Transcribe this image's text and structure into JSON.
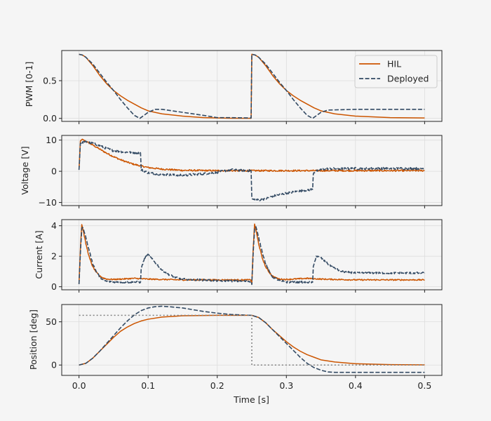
{
  "colors": {
    "hil": "#cc5500",
    "deployed": "#334a63",
    "reference": "#808080",
    "grid": "#dddddd",
    "background": "#f5f5f5"
  },
  "chart_data": [
    {
      "type": "line",
      "ylabel": "PWM [0-1]",
      "xlim": [
        -0.025,
        0.525
      ],
      "ylim": [
        -0.04,
        0.9
      ],
      "yticks": [
        0.0,
        0.5
      ],
      "ytick_labels": [
        "0.0",
        "0.5"
      ],
      "legend": {
        "position": "top-right",
        "entries": [
          "HIL",
          "Deployed"
        ]
      },
      "series": [
        {
          "name": "HIL",
          "style": "solid",
          "x": [
            0,
            0.005,
            0.01,
            0.02,
            0.03,
            0.04,
            0.05,
            0.06,
            0.07,
            0.08,
            0.09,
            0.1,
            0.12,
            0.15,
            0.18,
            0.2,
            0.22,
            0.249,
            0.25,
            0.255,
            0.26,
            0.27,
            0.28,
            0.29,
            0.3,
            0.31,
            0.32,
            0.33,
            0.34,
            0.35,
            0.37,
            0.4,
            0.45,
            0.5
          ],
          "y": [
            0.85,
            0.84,
            0.81,
            0.7,
            0.57,
            0.46,
            0.37,
            0.3,
            0.24,
            0.19,
            0.14,
            0.1,
            0.06,
            0.03,
            0.01,
            0.005,
            0.002,
            0.001,
            0.85,
            0.84,
            0.81,
            0.7,
            0.57,
            0.46,
            0.37,
            0.3,
            0.24,
            0.19,
            0.14,
            0.1,
            0.06,
            0.03,
            0.01,
            0.005
          ]
        },
        {
          "name": "Deployed",
          "style": "dashed",
          "x": [
            0,
            0.005,
            0.01,
            0.02,
            0.03,
            0.04,
            0.05,
            0.06,
            0.07,
            0.08,
            0.088,
            0.1,
            0.11,
            0.12,
            0.15,
            0.18,
            0.2,
            0.22,
            0.249,
            0.25,
            0.255,
            0.26,
            0.27,
            0.28,
            0.29,
            0.3,
            0.31,
            0.32,
            0.33,
            0.338,
            0.35,
            0.36,
            0.4,
            0.45,
            0.5
          ],
          "y": [
            0.85,
            0.84,
            0.81,
            0.72,
            0.6,
            0.48,
            0.37,
            0.25,
            0.14,
            0.04,
            0.0,
            0.08,
            0.12,
            0.12,
            0.08,
            0.04,
            0.01,
            0.01,
            0.005,
            0.85,
            0.84,
            0.81,
            0.72,
            0.6,
            0.48,
            0.37,
            0.25,
            0.14,
            0.04,
            0.0,
            0.08,
            0.11,
            0.12,
            0.12,
            0.12
          ]
        }
      ]
    },
    {
      "type": "line",
      "ylabel": "Voltage [V]",
      "xlim": [
        -0.025,
        0.525
      ],
      "ylim": [
        -11,
        11.5
      ],
      "yticks": [
        -10,
        0,
        10
      ],
      "ytick_labels": [
        "−10",
        "0",
        "10"
      ],
      "series": [
        {
          "name": "HIL",
          "style": "solid",
          "noise": 0.25,
          "x": [
            0,
            0.002,
            0.004,
            0.01,
            0.02,
            0.03,
            0.04,
            0.05,
            0.06,
            0.07,
            0.08,
            0.09,
            0.1,
            0.12,
            0.15,
            0.2,
            0.25,
            0.3,
            0.35,
            0.4,
            0.45,
            0.5
          ],
          "y": [
            0.5,
            9.5,
            10.2,
            9.6,
            8.4,
            7.1,
            5.8,
            4.7,
            3.7,
            2.9,
            2.2,
            1.7,
            1.2,
            0.7,
            0.3,
            0.2,
            0.2,
            0.2,
            0.2,
            0.2,
            0.2,
            0.2
          ]
        },
        {
          "name": "Deployed",
          "style": "dashed",
          "noise": 0.35,
          "x": [
            0,
            0.002,
            0.004,
            0.01,
            0.02,
            0.03,
            0.04,
            0.05,
            0.06,
            0.07,
            0.08,
            0.089,
            0.09,
            0.1,
            0.12,
            0.15,
            0.18,
            0.2,
            0.22,
            0.23,
            0.245,
            0.249,
            0.25,
            0.251,
            0.26,
            0.27,
            0.28,
            0.3,
            0.32,
            0.338,
            0.339,
            0.345,
            0.35,
            0.36,
            0.4,
            0.45,
            0.5
          ],
          "y": [
            0.5,
            9.0,
            9.3,
            9.4,
            9.0,
            8.2,
            7.3,
            6.6,
            6.3,
            6.1,
            6.0,
            5.9,
            0.5,
            -0.5,
            -1.0,
            -1.3,
            -0.8,
            -0.3,
            0.5,
            0.3,
            0.2,
            0.2,
            -8.5,
            -9.0,
            -9.2,
            -8.8,
            -8.0,
            -7.0,
            -6.3,
            -5.8,
            -0.5,
            0.2,
            0.6,
            0.8,
            0.9,
            0.9,
            0.9
          ]
        }
      ]
    },
    {
      "type": "line",
      "ylabel": "Current [A]",
      "xlim": [
        -0.025,
        0.525
      ],
      "ylim": [
        -0.2,
        4.4
      ],
      "yticks": [
        0,
        2,
        4
      ],
      "ytick_labels": [
        "0",
        "2",
        "4"
      ],
      "series": [
        {
          "name": "HIL",
          "style": "solid",
          "noise": 0.04,
          "x": [
            0,
            0.002,
            0.004,
            0.006,
            0.01,
            0.015,
            0.02,
            0.025,
            0.03,
            0.035,
            0.04,
            0.05,
            0.06,
            0.08,
            0.1,
            0.15,
            0.2,
            0.249,
            0.25,
            0.252,
            0.254,
            0.256,
            0.26,
            0.265,
            0.27,
            0.275,
            0.28,
            0.285,
            0.29,
            0.3,
            0.31,
            0.33,
            0.35,
            0.4,
            0.45,
            0.5
          ],
          "y": [
            0.2,
            2.5,
            4.1,
            3.7,
            2.8,
            1.9,
            1.3,
            0.95,
            0.7,
            0.58,
            0.5,
            0.48,
            0.5,
            0.55,
            0.5,
            0.45,
            0.45,
            0.45,
            0.2,
            2.5,
            4.1,
            3.7,
            2.8,
            1.9,
            1.3,
            0.95,
            0.7,
            0.58,
            0.5,
            0.48,
            0.5,
            0.55,
            0.5,
            0.45,
            0.45,
            0.45
          ]
        },
        {
          "name": "Deployed",
          "style": "dashed",
          "noise": 0.06,
          "x": [
            0,
            0.002,
            0.004,
            0.006,
            0.01,
            0.015,
            0.02,
            0.025,
            0.03,
            0.035,
            0.04,
            0.05,
            0.06,
            0.07,
            0.08,
            0.089,
            0.09,
            0.095,
            0.1,
            0.11,
            0.12,
            0.13,
            0.14,
            0.15,
            0.2,
            0.249,
            0.25,
            0.252,
            0.254,
            0.256,
            0.26,
            0.265,
            0.27,
            0.275,
            0.28,
            0.29,
            0.3,
            0.32,
            0.338,
            0.339,
            0.343,
            0.35,
            0.36,
            0.37,
            0.38,
            0.4,
            0.45,
            0.5
          ],
          "y": [
            0.2,
            2.2,
            3.8,
            3.9,
            3.2,
            2.3,
            1.5,
            1.0,
            0.65,
            0.45,
            0.35,
            0.3,
            0.3,
            0.3,
            0.3,
            0.3,
            1.2,
            1.9,
            2.1,
            1.6,
            1.1,
            0.8,
            0.6,
            0.5,
            0.4,
            0.35,
            0.2,
            2.2,
            3.8,
            3.9,
            3.2,
            2.3,
            1.5,
            1.0,
            0.65,
            0.4,
            0.3,
            0.3,
            0.3,
            1.3,
            2.0,
            1.9,
            1.5,
            1.2,
            1.0,
            0.9,
            0.9,
            0.9
          ]
        }
      ]
    },
    {
      "type": "line",
      "ylabel": "Position [deg]",
      "xlabel": "Time [s]",
      "xlim": [
        -0.025,
        0.525
      ],
      "ylim": [
        -12,
        70
      ],
      "yticks": [
        0,
        50
      ],
      "ytick_labels": [
        "0",
        "50"
      ],
      "xticks": [
        0.0,
        0.1,
        0.2,
        0.3,
        0.4,
        0.5
      ],
      "xtick_labels": [
        "0.0",
        "0.1",
        "0.2",
        "0.3",
        "0.4",
        "0.5"
      ],
      "series": [
        {
          "name": "HIL",
          "style": "solid",
          "x": [
            0,
            0.01,
            0.02,
            0.03,
            0.04,
            0.05,
            0.06,
            0.07,
            0.08,
            0.09,
            0.1,
            0.12,
            0.15,
            0.2,
            0.25,
            0.26,
            0.27,
            0.28,
            0.29,
            0.3,
            0.31,
            0.32,
            0.33,
            0.34,
            0.35,
            0.37,
            0.4,
            0.45,
            0.5
          ],
          "y": [
            0,
            2,
            8,
            16,
            24,
            32,
            39,
            44,
            48,
            51,
            53,
            55.5,
            57,
            57.5,
            57.5,
            55,
            49,
            41,
            34,
            27,
            21,
            16,
            12,
            9,
            6,
            3.5,
            1.5,
            0.5,
            0.2
          ]
        },
        {
          "name": "Deployed",
          "style": "dashed",
          "x": [
            0,
            0.01,
            0.02,
            0.03,
            0.04,
            0.05,
            0.06,
            0.07,
            0.08,
            0.09,
            0.1,
            0.11,
            0.12,
            0.13,
            0.15,
            0.18,
            0.2,
            0.22,
            0.25,
            0.26,
            0.27,
            0.28,
            0.29,
            0.3,
            0.31,
            0.32,
            0.33,
            0.34,
            0.35,
            0.36,
            0.37,
            0.4,
            0.45,
            0.5
          ],
          "y": [
            0,
            2,
            8,
            16,
            25,
            34,
            43,
            51,
            58,
            63,
            66,
            67.5,
            68,
            67.5,
            66,
            62,
            60,
            58.5,
            57.5,
            55,
            49,
            41,
            33,
            25,
            17,
            9,
            2,
            -3,
            -6,
            -8,
            -8.5,
            -8.5,
            -8.5,
            -8.5
          ]
        },
        {
          "name": "Reference",
          "style": "dotted",
          "x": [
            0,
            0.25,
            0.25,
            0.5
          ],
          "y": [
            57.5,
            57.5,
            0,
            0
          ]
        }
      ]
    }
  ]
}
